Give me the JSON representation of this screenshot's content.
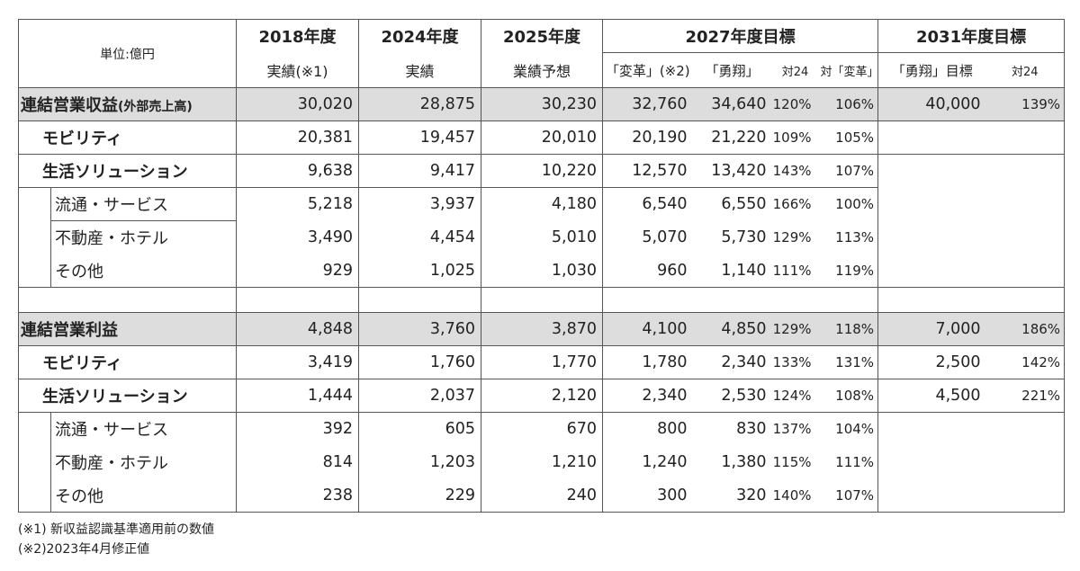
{
  "header": {
    "unit": "単位:億円",
    "col_2018": "2018年度",
    "col_2024": "2024年度",
    "col_2025": "2025年度",
    "col_2027": "2027年度目標",
    "col_2031": "2031年度目標",
    "sub_2018": "実績(※1)",
    "sub_2024": "実績",
    "sub_2025": "業績予想",
    "sub_2027_henkaku": "「変革」(※2)",
    "sub_2027_yusho": "「勇翔」",
    "sub_2027_vs24": "対24",
    "sub_2027_vs_henkaku": "対「変革」",
    "sub_2031_target": "「勇翔」目標",
    "sub_2031_vs24": "対24"
  },
  "revenue": {
    "total": {
      "label": "連結営業収益",
      "label_note": "(外部売上高)",
      "v2018": "30,020",
      "v2024": "28,875",
      "v2025": "30,230",
      "henkaku": "32,760",
      "yusho": "34,640",
      "vs24": "120%",
      "vs_henkaku": "106%",
      "t2031": "40,000",
      "t2031_vs24": "139%"
    },
    "mobility": {
      "label": "モビリティ",
      "v2018": "20,381",
      "v2024": "19,457",
      "v2025": "20,010",
      "henkaku": "20,190",
      "yusho": "21,220",
      "vs24": "109%",
      "vs_henkaku": "105%"
    },
    "life": {
      "label": "生活ソリューション",
      "v2018": "9,638",
      "v2024": "9,417",
      "v2025": "10,220",
      "henkaku": "12,570",
      "yusho": "13,420",
      "vs24": "143%",
      "vs_henkaku": "107%"
    },
    "retail": {
      "label": "流通・サービス",
      "v2018": "5,218",
      "v2024": "3,937",
      "v2025": "4,180",
      "henkaku": "6,540",
      "yusho": "6,550",
      "vs24": "166%",
      "vs_henkaku": "100%"
    },
    "realestate": {
      "label": "不動産・ホテル",
      "v2018": "3,490",
      "v2024": "4,454",
      "v2025": "5,010",
      "henkaku": "5,070",
      "yusho": "5,730",
      "vs24": "129%",
      "vs_henkaku": "113%"
    },
    "other": {
      "label": "その他",
      "v2018": "929",
      "v2024": "1,025",
      "v2025": "1,030",
      "henkaku": "960",
      "yusho": "1,140",
      "vs24": "111%",
      "vs_henkaku": "119%"
    }
  },
  "profit": {
    "total": {
      "label": "連結営業利益",
      "v2018": "4,848",
      "v2024": "3,760",
      "v2025": "3,870",
      "henkaku": "4,100",
      "yusho": "4,850",
      "vs24": "129%",
      "vs_henkaku": "118%",
      "t2031": "7,000",
      "t2031_vs24": "186%"
    },
    "mobility": {
      "label": "モビリティ",
      "v2018": "3,419",
      "v2024": "1,760",
      "v2025": "1,770",
      "henkaku": "1,780",
      "yusho": "2,340",
      "vs24": "133%",
      "vs_henkaku": "131%",
      "t2031": "2,500",
      "t2031_vs24": "142%"
    },
    "life": {
      "label": "生活ソリューション",
      "v2018": "1,444",
      "v2024": "2,037",
      "v2025": "2,120",
      "henkaku": "2,340",
      "yusho": "2,530",
      "vs24": "124%",
      "vs_henkaku": "108%",
      "t2031": "4,500",
      "t2031_vs24": "221%"
    },
    "retail": {
      "label": "流通・サービス",
      "v2018": "392",
      "v2024": "605",
      "v2025": "670",
      "henkaku": "800",
      "yusho": "830",
      "vs24": "137%",
      "vs_henkaku": "104%"
    },
    "realestate": {
      "label": "不動産・ホテル",
      "v2018": "814",
      "v2024": "1,203",
      "v2025": "1,210",
      "henkaku": "1,240",
      "yusho": "1,380",
      "vs24": "115%",
      "vs_henkaku": "111%"
    },
    "other": {
      "label": "その他",
      "v2018": "238",
      "v2024": "229",
      "v2025": "240",
      "henkaku": "300",
      "yusho": "320",
      "vs24": "140%",
      "vs_henkaku": "107%"
    }
  },
  "footnotes": {
    "note1": "(※1) 新収益認識基準適用前の数値",
    "note2": "(※2)2023年4月修正値"
  }
}
